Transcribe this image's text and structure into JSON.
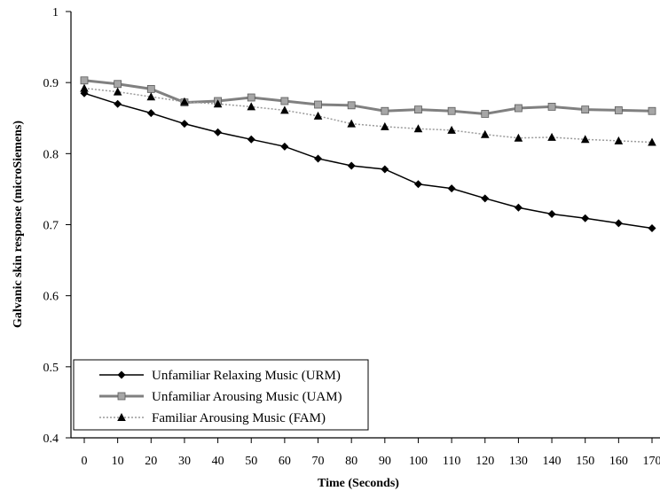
{
  "chart_data": {
    "type": "line",
    "xlabel": "Time (Seconds)",
    "ylabel": "Galvanic skin response (microSiemens)",
    "xlim": [
      0,
      170
    ],
    "ylim": [
      0.4,
      1
    ],
    "x_ticks": [
      "0",
      "10",
      "20",
      "30",
      "40",
      "50",
      "60",
      "70",
      "80",
      "90",
      "100",
      "110",
      "120",
      "130",
      "140",
      "150",
      "160",
      "170"
    ],
    "y_ticks": [
      "0.4",
      "0.5",
      "0.6",
      "0.7",
      "0.8",
      "0.9",
      "1"
    ],
    "x": [
      0,
      10,
      20,
      30,
      40,
      50,
      60,
      70,
      80,
      90,
      100,
      110,
      120,
      130,
      140,
      150,
      160,
      170
    ],
    "grid": false,
    "legend_position": "bottom-left",
    "series": [
      {
        "name": "Unfamiliar Relaxing Music (URM)",
        "marker": "diamond",
        "color": "#000000",
        "values": [
          0.885,
          0.87,
          0.857,
          0.842,
          0.83,
          0.82,
          0.81,
          0.793,
          0.783,
          0.778,
          0.757,
          0.751,
          0.737,
          0.724,
          0.715,
          0.709,
          0.702,
          0.695
        ]
      },
      {
        "name": "Unfamiliar Arousing Music (UAM)",
        "marker": "square",
        "color": "#7f7f7f",
        "values": [
          0.903,
          0.898,
          0.891,
          0.872,
          0.874,
          0.879,
          0.874,
          0.869,
          0.868,
          0.86,
          0.862,
          0.86,
          0.856,
          0.864,
          0.866,
          0.862,
          0.861,
          0.86
        ]
      },
      {
        "name": "Familiar Arousing Music (FAM)",
        "marker": "triangle",
        "color": "#000000",
        "values": [
          0.892,
          0.887,
          0.88,
          0.873,
          0.87,
          0.866,
          0.861,
          0.853,
          0.842,
          0.838,
          0.835,
          0.833,
          0.827,
          0.822,
          0.823,
          0.82,
          0.818,
          0.816
        ]
      }
    ]
  }
}
